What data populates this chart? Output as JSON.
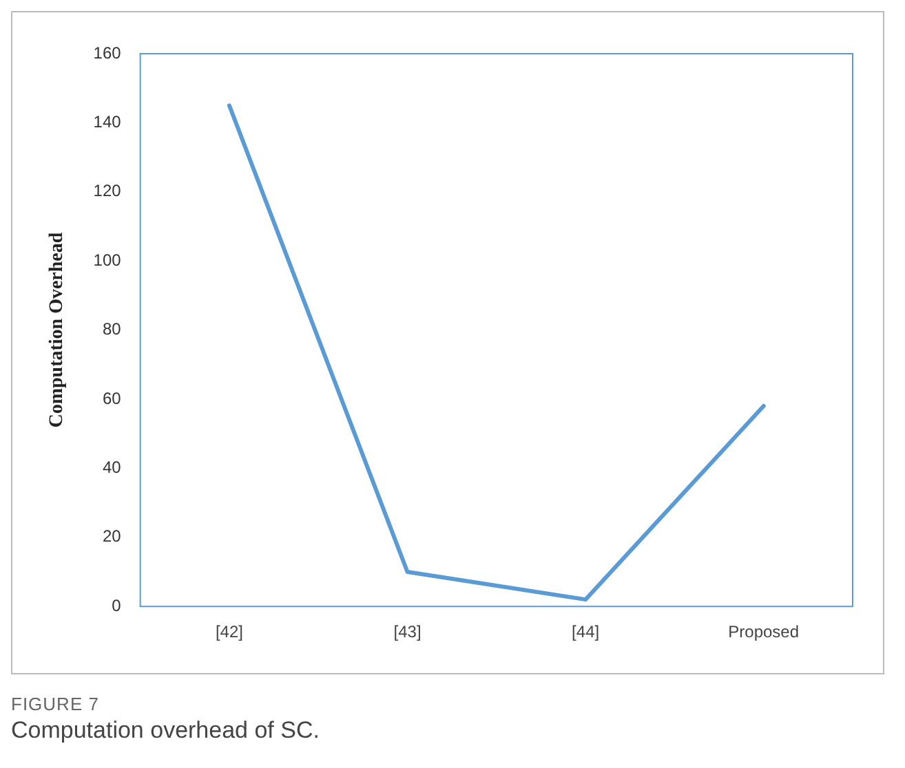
{
  "chart_data": {
    "type": "line",
    "ylabel": "Computation Overhead",
    "categories": [
      "[42]",
      "[43]",
      "[44]",
      "Proposed"
    ],
    "series": [
      {
        "color": "#5b9bd5",
        "values": [
          145,
          10,
          2,
          58
        ]
      }
    ],
    "ylim": [
      0,
      160
    ],
    "yticks": [
      0,
      20,
      40,
      60,
      80,
      100,
      120,
      140,
      160
    ],
    "grid": false,
    "legend": false,
    "marker": "none",
    "line_style": "solid",
    "annotations": [
      "FIGURE 7",
      "Computation overhead of SC."
    ]
  }
}
